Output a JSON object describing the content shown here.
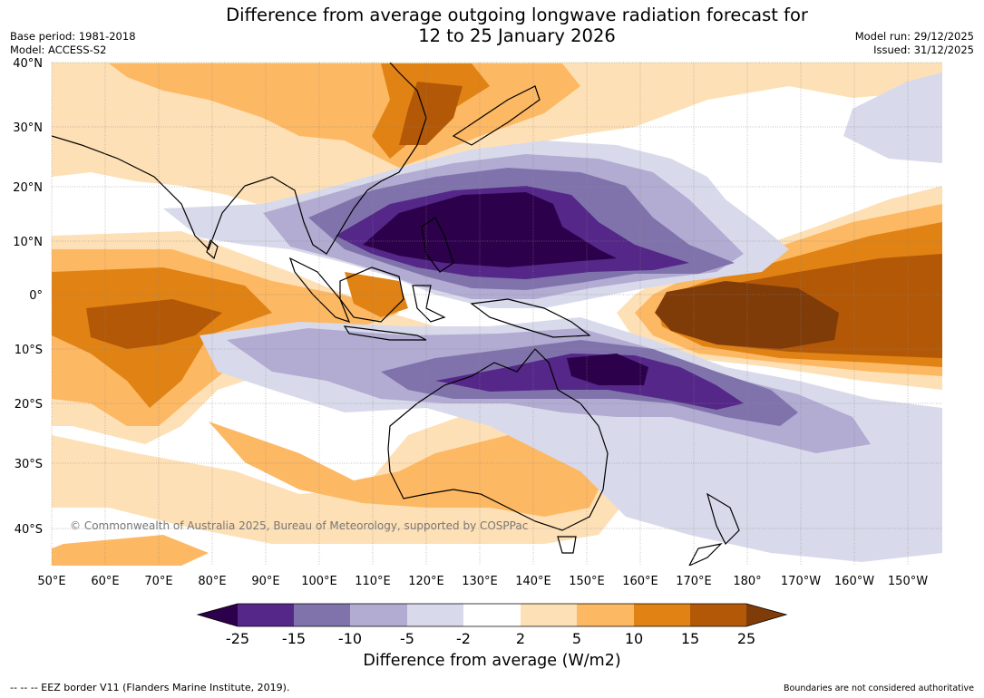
{
  "header": {
    "title_line1": "Difference from average outgoing longwave radiation forecast for",
    "title_line2": "12 to 25 January 2026",
    "base_period": "Base period: 1981-2018",
    "model": "Model: ACCESS-S2",
    "model_run": "Model run: 29/12/2025",
    "issued": "Issued: 31/12/2025"
  },
  "map": {
    "copyright": "© Commonwealth of Australia 2025, Bureau of Meteorology, supported by COSPPac",
    "lat_labels": [
      "40°N",
      "30°N",
      "20°N",
      "10°N",
      "0°",
      "10°S",
      "20°S",
      "30°S",
      "40°S"
    ],
    "lon_labels": [
      "50°E",
      "60°E",
      "70°E",
      "80°E",
      "90°E",
      "100°E",
      "110°E",
      "120°E",
      "130°E",
      "140°E",
      "150°E",
      "160°E",
      "170°E",
      "180°",
      "170°W",
      "160°W",
      "150°W"
    ],
    "colors": {
      "neg25": "#2d004b",
      "neg15": "#542788",
      "neg10": "#8073ac",
      "neg5": "#b2abd2",
      "neg2": "#d8daeb",
      "zero": "#ffffff",
      "pos2": "#fee0b6",
      "pos5": "#fdb863",
      "pos10": "#e08214",
      "pos15": "#b35806",
      "pos25": "#7f3b08",
      "land": "#000000"
    }
  },
  "colorbar": {
    "ticks": [
      "-25",
      "-15",
      "-10",
      "-5",
      "-2",
      "2",
      "5",
      "10",
      "15",
      "25"
    ],
    "title": "Difference from average (W/m2)"
  },
  "footer": {
    "eez": "--  --  -- EEZ border V11 (Flanders Marine Institute, 2019).",
    "boundaries": "Boundaries are not considered authoritative"
  }
}
